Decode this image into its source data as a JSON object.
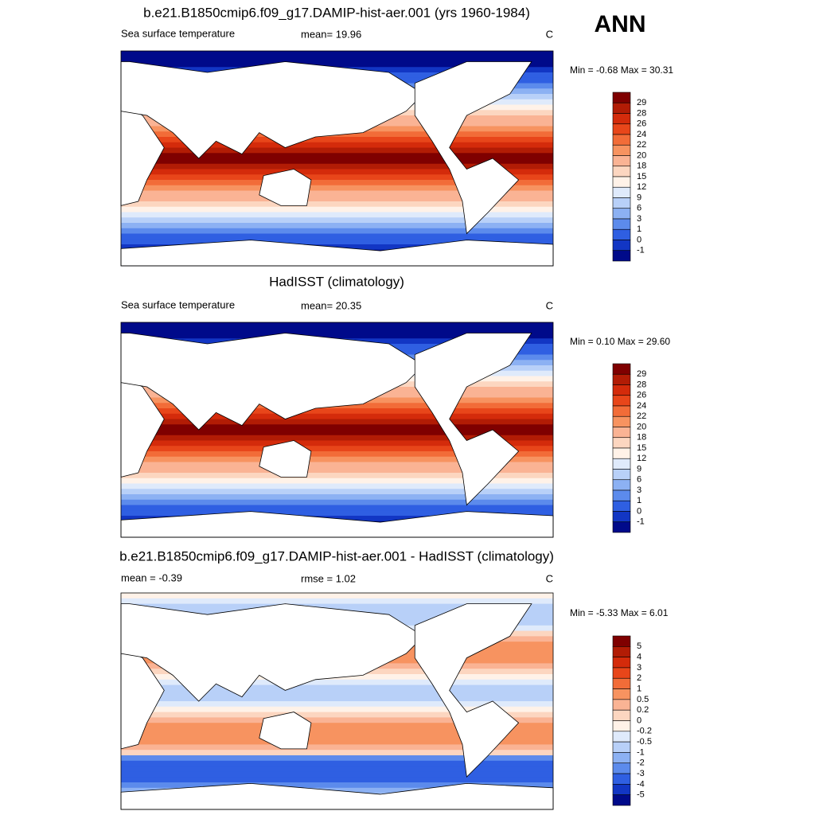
{
  "season": "ANN",
  "panels": [
    {
      "title": "b.e21.B1850cmip6.f09_g17.DAMIP-hist-aer.001 (yrs 1960-1984)",
      "left": "Sea surface temperature",
      "center": "mean=  19.96",
      "units": "C",
      "range": "Min =  -0.68 Max =  30.31",
      "colorbar": {
        "colors": [
          "#7f0000",
          "#b21c05",
          "#d42b0b",
          "#e8461a",
          "#f26c38",
          "#f79360",
          "#fab394",
          "#fcd6c0",
          "#fff2e8",
          "#dfeafb",
          "#b8d0f8",
          "#8cb1f3",
          "#5c8bec",
          "#2f5fe2",
          "#1236c4",
          "#000a8a"
        ],
        "labels": [
          "29",
          "28",
          "26",
          "24",
          "22",
          "20",
          "18",
          "15",
          "12",
          "9",
          "6",
          "3",
          "1",
          "0",
          "-1"
        ]
      }
    },
    {
      "title": "HadISST (climatology)",
      "left": "Sea surface temperature",
      "center": "mean=  20.35",
      "units": "C",
      "range": "Min =   0.10 Max =  29.60",
      "colorbar": {
        "colors": [
          "#7f0000",
          "#b21c05",
          "#d42b0b",
          "#e8461a",
          "#f26c38",
          "#f79360",
          "#fab394",
          "#fcd6c0",
          "#fff2e8",
          "#dfeafb",
          "#b8d0f8",
          "#8cb1f3",
          "#5c8bec",
          "#2f5fe2",
          "#1236c4",
          "#000a8a"
        ],
        "labels": [
          "29",
          "28",
          "26",
          "24",
          "22",
          "20",
          "18",
          "15",
          "12",
          "9",
          "6",
          "3",
          "1",
          "0",
          "-1"
        ]
      }
    },
    {
      "title": "b.e21.B1850cmip6.f09_g17.DAMIP-hist-aer.001 - HadISST (climatology)",
      "left": "mean =  -0.39",
      "center": "rmse =   1.02",
      "units": "C",
      "range": "Min =  -5.33 Max =   6.01",
      "colorbar": {
        "colors": [
          "#7f0000",
          "#b21c05",
          "#d42b0b",
          "#e8461a",
          "#f26c38",
          "#f79360",
          "#fab394",
          "#fcd6c0",
          "#fff2e8",
          "#dfeafb",
          "#b8d0f8",
          "#8cb1f3",
          "#5c8bec",
          "#2f5fe2",
          "#1236c4",
          "#000a8a"
        ],
        "labels": [
          "5",
          "4",
          "3",
          "2",
          "1",
          "0.5",
          "0.2",
          "0",
          "-0.2",
          "-0.5",
          "-1",
          "-2",
          "-3",
          "-4",
          "-5"
        ]
      }
    }
  ]
}
